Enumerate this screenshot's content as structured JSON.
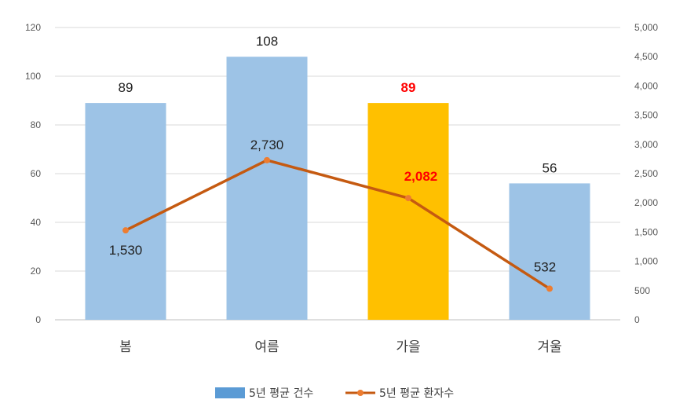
{
  "chart_data": {
    "type": "bar+line",
    "categories": [
      "봄",
      "여름",
      "가을",
      "겨울"
    ],
    "series": [
      {
        "name": "5년 평균 건수",
        "type": "bar",
        "axis": "left",
        "values": [
          89,
          108,
          89,
          56
        ],
        "value_labels": [
          "89",
          "108",
          "89",
          "56"
        ],
        "color": "#9dc3e6",
        "highlight_index": 2,
        "highlight_color": "#ffc000"
      },
      {
        "name": "5년 평균 환자수",
        "type": "line",
        "axis": "right",
        "values": [
          1530,
          2730,
          2082,
          532
        ],
        "value_labels": [
          "1,530",
          "2,730",
          "2,082",
          "532"
        ],
        "color": "#c55a11",
        "marker_color": "#ed7d31",
        "highlight_index": 2
      }
    ],
    "left_axis": {
      "ylim": [
        0,
        120
      ],
      "ticks": [
        0,
        20,
        40,
        60,
        80,
        100,
        120
      ],
      "tick_labels": [
        "0",
        "20",
        "40",
        "60",
        "80",
        "100",
        "120"
      ]
    },
    "right_axis": {
      "ylim": [
        0,
        5000
      ],
      "ticks": [
        0,
        500,
        1000,
        1500,
        2000,
        2500,
        3000,
        3500,
        4000,
        4500,
        5000
      ],
      "tick_labels": [
        "0",
        "500",
        "1,000",
        "1,500",
        "2,000",
        "2,500",
        "3,000",
        "3,500",
        "4,000",
        "4,500",
        "5,000"
      ]
    },
    "grid": true,
    "legend_position": "bottom",
    "highlight_label_color": "#ff0000"
  }
}
